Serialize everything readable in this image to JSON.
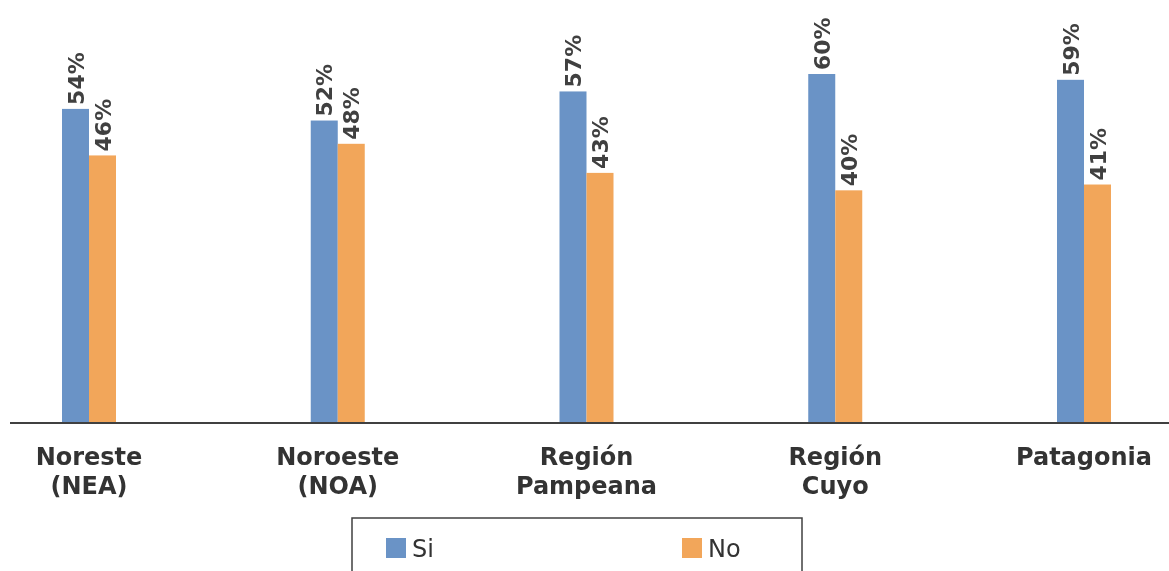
{
  "chart_data": {
    "type": "bar",
    "categories": [
      "Noreste (NEA)",
      "Noroeste (NOA)",
      "Región Pampeana",
      "Región Cuyo",
      "Patagonia"
    ],
    "series": [
      {
        "name": "Si",
        "color": "#6a93c6",
        "values": [
          54,
          52,
          57,
          60,
          59
        ],
        "value_labels": [
          "54%",
          "52%",
          "57%",
          "60%",
          "59%"
        ]
      },
      {
        "name": "No",
        "color": "#f2a65a",
        "values": [
          46,
          48,
          43,
          40,
          41
        ],
        "value_labels": [
          "46%",
          "48%",
          "43%",
          "40%",
          "41%"
        ]
      }
    ],
    "legend": "bottom"
  }
}
